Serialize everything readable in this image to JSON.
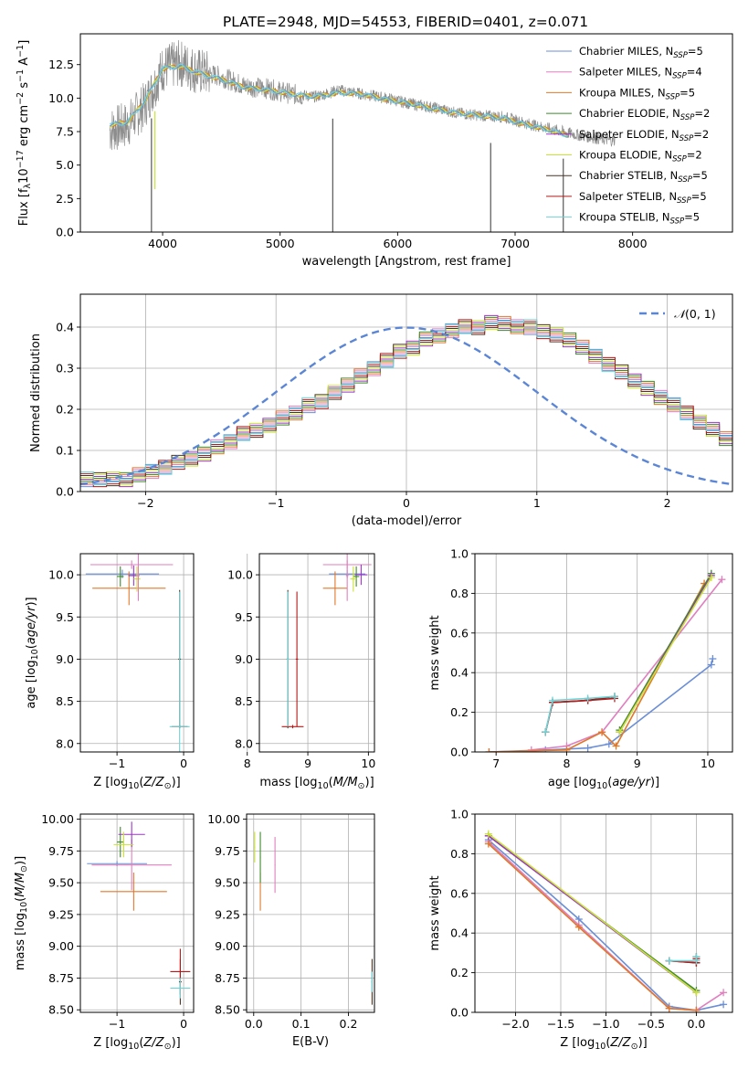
{
  "figure_title": "PLATE=2948, MJD=54553, FIBERID=0401, z=0.071",
  "colors": {
    "Chabrier MILES": "#6b8fd6",
    "Salpeter MILES": "#e07fbf",
    "Kroupa MILES": "#e0782b",
    "Chabrier ELODIE": "#3d8a2a",
    "Salpeter ELODIE": "#9b36c6",
    "Kroupa ELODIE": "#c9e332",
    "Chabrier STELIB": "#4a3322",
    "Salpeter STELIB": "#b51919",
    "Kroupa STELIB": "#6ed3d6",
    "data": "#8c8c8c",
    "normal": "#5b86d6"
  },
  "chart_data": [
    {
      "id": "spectrum",
      "type": "line",
      "title": "PLATE=2948, MJD=54553, FIBERID=0401, z=0.071",
      "xlabel": "wavelength [Angstrom, rest frame]",
      "ylabel": "Flux [f_λ 10^-17 erg cm^-2 s^-1 A^-1]",
      "xlim": [
        3300,
        8850
      ],
      "ylim": [
        0,
        14.8
      ],
      "xticks": [
        "4000",
        "5000",
        "6000",
        "7000",
        "8000"
      ],
      "yticks": [
        "0.0",
        "2.5",
        "5.0",
        "7.5",
        "10.0",
        "12.5"
      ],
      "legend_position": "upper-right",
      "legend": [
        "Chabrier MILES, N_SSP=5",
        "Salpeter MILES, N_SSP=4",
        "Kroupa MILES, N_SSP=5",
        "Chabrier ELODIE, N_SSP=2",
        "Salpeter ELODIE, N_SSP=2",
        "Kroupa ELODIE, N_SSP=2",
        "Chabrier STELIB, N_SSP=5",
        "Salpeter STELIB, N_SSP=5",
        "Kroupa STELIB, N_SSP=5"
      ],
      "data_series": {
        "x": [
          3550,
          3700,
          3850,
          4000,
          4150,
          4300,
          4500,
          4700,
          4900,
          5100,
          5300,
          5500,
          5700,
          5900,
          6100,
          6300,
          6500,
          6700,
          6900,
          7100,
          7300,
          7500,
          7700,
          7850
        ],
        "y": [
          7.6,
          8.0,
          9.5,
          12.2,
          12.6,
          12.0,
          11.6,
          10.9,
          10.7,
          10.3,
          10.1,
          10.6,
          10.3,
          10.0,
          9.6,
          9.3,
          8.9,
          8.7,
          8.6,
          8.1,
          7.7,
          7.3,
          7.0,
          6.8
        ]
      },
      "model_series": {
        "x": [
          3550,
          3700,
          3850,
          4000,
          4150,
          4300,
          4500,
          4700,
          4900,
          5100,
          5300,
          5500,
          5700,
          5900,
          6100,
          6300,
          6500,
          6700,
          6900,
          7100,
          7300,
          7450
        ],
        "y": [
          8.0,
          8.2,
          9.8,
          12.2,
          12.4,
          11.9,
          11.4,
          10.8,
          10.6,
          10.3,
          10.1,
          10.4,
          10.3,
          9.9,
          9.6,
          9.2,
          8.9,
          8.7,
          8.5,
          8.0,
          7.6,
          7.2
        ]
      },
      "absorption_dips": [
        {
          "x": 3905,
          "y": 0
        },
        {
          "x": 3935,
          "y": 3.2
        },
        {
          "x": 5448,
          "y": 0
        },
        {
          "x": 6792,
          "y": 0
        },
        {
          "x": 7410,
          "y": 0
        }
      ]
    },
    {
      "id": "residuals",
      "type": "histogram",
      "xlabel": "(data-model)/error",
      "ylabel": "Normed distribution",
      "xlim": [
        -2.5,
        2.5
      ],
      "ylim": [
        0,
        0.48
      ],
      "xticks": [
        "−2",
        "−1",
        "0",
        "1",
        "2"
      ],
      "yticks": [
        "0.0",
        "0.1",
        "0.2",
        "0.3",
        "0.4"
      ],
      "grid": true,
      "legend_position": "upper-right",
      "legend": [
        "𝒩(0, 1)"
      ],
      "bin_width": 0.1,
      "bin_start": -2.5,
      "base_values": [
        0.03,
        0.03,
        0.03,
        0.03,
        0.04,
        0.05,
        0.06,
        0.07,
        0.08,
        0.09,
        0.11,
        0.12,
        0.14,
        0.15,
        0.16,
        0.18,
        0.19,
        0.21,
        0.22,
        0.24,
        0.26,
        0.28,
        0.3,
        0.32,
        0.34,
        0.35,
        0.37,
        0.38,
        0.39,
        0.4,
        0.4,
        0.41,
        0.41,
        0.4,
        0.4,
        0.39,
        0.38,
        0.37,
        0.35,
        0.33,
        0.31,
        0.29,
        0.27,
        0.25,
        0.23,
        0.21,
        0.19,
        0.17,
        0.15,
        0.13,
        0.12,
        0.1,
        0.09,
        0.08,
        0.07,
        0.06,
        0.05,
        0.04,
        0.04,
        0.03
      ],
      "curve": {
        "mu": 0,
        "sigma": 1
      }
    },
    {
      "id": "age_vs_Z",
      "type": "errorbar",
      "xlabel": "Z [log10(Z/Z⊙)]",
      "ylabel": "age  [log10(age/yr)]",
      "xlim": [
        -1.55,
        0.15
      ],
      "ylim": [
        7.9,
        10.25
      ],
      "xticks": [
        "−1",
        "0"
      ],
      "yticks": [
        "8.0",
        "8.5",
        "9.0",
        "9.5",
        "10.0"
      ],
      "grid": true,
      "points": [
        {
          "model": "Chabrier MILES",
          "x": -0.92,
          "y": 10.01,
          "xerr": 0.55,
          "yerr": 0.05
        },
        {
          "model": "Salpeter MILES",
          "x": -0.78,
          "y": 10.12,
          "xerr": 0.62,
          "yerr": 0.05
        },
        {
          "model": "Kroupa MILES",
          "x": -0.82,
          "y": 9.84,
          "xerr": 0.55,
          "yerr": 0.2
        },
        {
          "model": "Chabrier ELODIE",
          "x": -0.95,
          "y": 9.98,
          "xerr": 0.05,
          "yerr": 0.12
        },
        {
          "model": "Salpeter ELODIE",
          "x": -0.75,
          "y": 9.99,
          "xerr": 0.08,
          "yerr": 0.12
        },
        {
          "model": "Kroupa ELODIE",
          "x": -0.7,
          "y": 9.95,
          "xerr": 0.05,
          "yerr": 0.15
        },
        {
          "model": "Salpeter MILES",
          "x": -0.68,
          "y": 9.99,
          "xerr": 0.02,
          "yerr": 0.3
        },
        {
          "model": "Chabrier STELIB",
          "x": -0.06,
          "y": 9.0,
          "xerr": 0.02,
          "yerr": 0.82
        },
        {
          "model": "Salpeter STELIB",
          "x": -0.06,
          "y": 8.2,
          "xerr": 0.12,
          "yerr": 0.02
        },
        {
          "model": "Kroupa STELIB",
          "x": -0.06,
          "y": 8.2,
          "xerr": 0.15,
          "yerr": 1.6
        }
      ]
    },
    {
      "id": "age_vs_mass",
      "type": "errorbar",
      "xlabel": "mass [log10(M/M⊙)]",
      "ylabel": "",
      "xlim": [
        8.2,
        10.1
      ],
      "ylim": [
        7.9,
        10.25
      ],
      "xticks": [
        "8",
        "9",
        "10"
      ],
      "yticks": [
        "8.0",
        "8.5",
        "9.0",
        "9.5",
        "10.0"
      ],
      "grid": true,
      "points": [
        {
          "model": "Chabrier MILES",
          "x": 9.65,
          "y": 10.01,
          "xerr": 0.3,
          "yerr": 0.05
        },
        {
          "model": "Salpeter MILES",
          "x": 9.65,
          "y": 10.12,
          "xerr": 0.4,
          "yerr": 0.05
        },
        {
          "model": "Kroupa MILES",
          "x": 9.45,
          "y": 9.84,
          "xerr": 0.2,
          "yerr": 0.2
        },
        {
          "model": "Chabrier ELODIE",
          "x": 9.8,
          "y": 9.98,
          "xerr": 0.05,
          "yerr": 0.12
        },
        {
          "model": "Salpeter ELODIE",
          "x": 9.88,
          "y": 10.0,
          "xerr": 0.1,
          "yerr": 0.12
        },
        {
          "model": "Kroupa ELODIE",
          "x": 9.75,
          "y": 9.95,
          "xerr": 0.05,
          "yerr": 0.15
        },
        {
          "model": "Salpeter MILES",
          "x": 9.65,
          "y": 9.99,
          "xerr": 0.02,
          "yerr": 0.3
        },
        {
          "model": "Chabrier STELIB",
          "x": 8.67,
          "y": 9.0,
          "xerr": 0.02,
          "yerr": 0.82
        },
        {
          "model": "Salpeter STELIB",
          "x": 8.82,
          "y": 9.0,
          "xerr": 0.02,
          "yerr": 0.8
        },
        {
          "model": "Salpeter STELIB",
          "x": 8.75,
          "y": 8.2,
          "xerr": 0.18,
          "yerr": 0.02
        },
        {
          "model": "Kroupa STELIB",
          "x": 8.67,
          "y": 9.0,
          "xerr": 0.02,
          "yerr": 0.8
        }
      ]
    },
    {
      "id": "weight_vs_age",
      "type": "line",
      "xlabel": "age  [log10(age/yr)]",
      "ylabel": "mass weight",
      "xlim": [
        6.7,
        10.35
      ],
      "ylim": [
        0,
        1.0
      ],
      "xticks": [
        "7",
        "8",
        "9",
        "10"
      ],
      "yticks": [
        "0.0",
        "0.2",
        "0.4",
        "0.6",
        "0.8",
        "1.0"
      ],
      "grid": true,
      "series": [
        {
          "model": "Chabrier MILES",
          "x": [
            6.9,
            7.7,
            8.3,
            8.6,
            10.05,
            10.07
          ],
          "y": [
            0.0,
            0.01,
            0.02,
            0.04,
            0.44,
            0.47
          ]
        },
        {
          "model": "Salpeter MILES",
          "x": [
            7.5,
            8.0,
            8.5,
            10.2
          ],
          "y": [
            0.01,
            0.03,
            0.1,
            0.87
          ]
        },
        {
          "model": "Kroupa MILES",
          "x": [
            6.9,
            8.0,
            8.5,
            8.7,
            9.95
          ],
          "y": [
            0.0,
            0.01,
            0.1,
            0.03,
            0.85
          ]
        },
        {
          "model": "Chabrier ELODIE",
          "x": [
            8.75,
            10.05
          ],
          "y": [
            0.11,
            0.9
          ]
        },
        {
          "model": "Salpeter ELODIE",
          "x": [
            8.75,
            10.05
          ],
          "y": [
            0.1,
            0.89
          ]
        },
        {
          "model": "Kroupa ELODIE",
          "x": [
            8.75,
            10.05
          ],
          "y": [
            0.1,
            0.88
          ]
        },
        {
          "model": "Chabrier STELIB",
          "x": [
            7.7,
            7.8,
            8.3,
            8.68
          ],
          "y": [
            0.1,
            0.25,
            0.26,
            0.28
          ]
        },
        {
          "model": "Salpeter STELIB",
          "x": [
            7.7,
            7.8,
            8.3,
            8.68
          ],
          "y": [
            0.1,
            0.25,
            0.26,
            0.27
          ]
        },
        {
          "model": "Kroupa STELIB",
          "x": [
            7.7,
            7.8,
            8.3,
            8.68
          ],
          "y": [
            0.1,
            0.26,
            0.27,
            0.28
          ]
        }
      ]
    },
    {
      "id": "mass_vs_Z",
      "type": "errorbar",
      "xlabel": "Z [log10(Z/Z⊙)]",
      "ylabel": "mass [log10(M/M⊙)]",
      "xlim": [
        -1.55,
        0.15
      ],
      "ylim": [
        8.48,
        10.04
      ],
      "xticks": [
        "−1",
        "0"
      ],
      "yticks": [
        "8.50",
        "8.75",
        "9.00",
        "9.25",
        "9.50",
        "9.75",
        "10.00"
      ],
      "grid": true,
      "points": [
        {
          "model": "Chabrier MILES",
          "x": -1.0,
          "y": 9.65,
          "xerr": 0.45,
          "yerr": 0.02
        },
        {
          "model": "Salpeter MILES",
          "x": -0.78,
          "y": 9.64,
          "xerr": 0.6,
          "yerr": 0.2
        },
        {
          "model": "Kroupa MILES",
          "x": -0.75,
          "y": 9.43,
          "xerr": 0.5,
          "yerr": 0.15
        },
        {
          "model": "Chabrier ELODIE",
          "x": -0.95,
          "y": 9.82,
          "xerr": 0.05,
          "yerr": 0.12
        },
        {
          "model": "Salpeter ELODIE",
          "x": -0.78,
          "y": 9.88,
          "xerr": 0.2,
          "yerr": 0.1
        },
        {
          "model": "Kroupa ELODIE",
          "x": -0.9,
          "y": 9.8,
          "xerr": 0.15,
          "yerr": 0.1
        },
        {
          "model": "Chabrier STELIB",
          "x": -0.05,
          "y": 8.72,
          "xerr": 0.02,
          "yerr": 0.18
        },
        {
          "model": "Salpeter STELIB",
          "x": -0.05,
          "y": 8.8,
          "xerr": 0.15,
          "yerr": 0.18
        },
        {
          "model": "Kroupa STELIB",
          "x": -0.05,
          "y": 8.67,
          "xerr": 0.15,
          "yerr": 0.08
        }
      ]
    },
    {
      "id": "mass_vs_ebv",
      "type": "errorbar",
      "xlabel": "E(B-V)",
      "ylabel": "",
      "xlim": [
        -0.015,
        0.255
      ],
      "ylim": [
        8.48,
        10.04
      ],
      "xticks": [
        "0.0",
        "0.1",
        "0.2"
      ],
      "yticks": [
        "8.50",
        "8.75",
        "9.00",
        "9.25",
        "9.50",
        "9.75",
        "10.00"
      ],
      "grid": true,
      "points": [
        {
          "model": "Kroupa ELODIE",
          "x": 0.002,
          "y": 9.78,
          "xerr": 0.001,
          "yerr": 0.12
        },
        {
          "model": "Kroupa MILES",
          "x": 0.014,
          "y": 9.43,
          "xerr": 0.001,
          "yerr": 0.15
        },
        {
          "model": "Chabrier ELODIE",
          "x": 0.014,
          "y": 9.7,
          "xerr": 0.001,
          "yerr": 0.2
        },
        {
          "model": "Salpeter MILES",
          "x": 0.045,
          "y": 9.64,
          "xerr": 0.001,
          "yerr": 0.22
        },
        {
          "model": "Chabrier STELIB",
          "x": 0.25,
          "y": 8.72,
          "xerr": 0.001,
          "yerr": 0.18
        },
        {
          "model": "Kroupa STELIB",
          "x": 0.25,
          "y": 8.72,
          "xerr": 0.001,
          "yerr": 0.08
        }
      ]
    },
    {
      "id": "weight_vs_Z",
      "type": "line",
      "xlabel": "Z [log10(Z/Z⊙)]",
      "ylabel": "mass weight",
      "xlim": [
        -2.45,
        0.4
      ],
      "ylim": [
        0,
        1.0
      ],
      "xticks": [
        "−2.0",
        "−1.5",
        "−1.0",
        "−0.5",
        "0.0"
      ],
      "yticks": [
        "0.0",
        "0.2",
        "0.4",
        "0.6",
        "0.8",
        "1.0"
      ],
      "grid": true,
      "series": [
        {
          "model": "Chabrier MILES",
          "x": [
            -2.3,
            -1.3,
            -0.3,
            0.0,
            0.3
          ],
          "y": [
            0.87,
            0.47,
            0.03,
            0.01,
            0.04
          ]
        },
        {
          "model": "Salpeter MILES",
          "x": [
            -2.3,
            -1.3,
            -0.3,
            0.0,
            0.3
          ],
          "y": [
            0.86,
            0.44,
            0.02,
            0.01,
            0.1
          ]
        },
        {
          "model": "Kroupa MILES",
          "x": [
            -2.3,
            -1.3,
            -0.3,
            0.0
          ],
          "y": [
            0.85,
            0.43,
            0.02,
            0.01
          ]
        },
        {
          "model": "Chabrier ELODIE",
          "x": [
            -2.3,
            0.0
          ],
          "y": [
            0.89,
            0.11
          ]
        },
        {
          "model": "Salpeter ELODIE",
          "x": [
            -2.3,
            0.0
          ],
          "y": [
            0.89,
            0.1
          ]
        },
        {
          "model": "Kroupa ELODIE",
          "x": [
            -2.3,
            0.0
          ],
          "y": [
            0.9,
            0.1
          ]
        },
        {
          "model": "Chabrier STELIB",
          "x": [
            -0.3,
            0.0,
            0.0
          ],
          "y": [
            0.26,
            0.25,
            0.28
          ]
        },
        {
          "model": "Salpeter STELIB",
          "x": [
            -0.3,
            0.0,
            0.0
          ],
          "y": [
            0.26,
            0.25,
            0.27
          ]
        },
        {
          "model": "Kroupa STELIB",
          "x": [
            -0.3,
            0.0,
            0.0
          ],
          "y": [
            0.26,
            0.26,
            0.28
          ]
        }
      ]
    }
  ]
}
